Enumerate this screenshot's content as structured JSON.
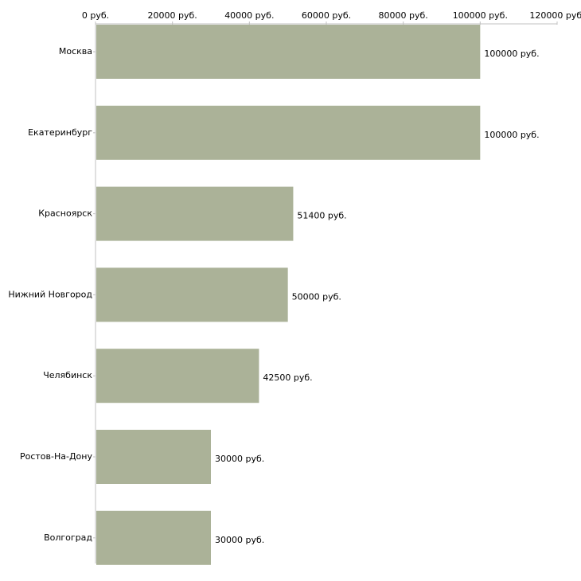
{
  "chart_data": {
    "type": "bar",
    "orientation": "horizontal",
    "title": "",
    "xlabel": "",
    "ylabel": "",
    "categories": [
      "Москва",
      "Екатеринбург",
      "Красноярск",
      "Нижний Новгород",
      "Челябинск",
      "Ростов-На-Дону",
      "Волгоград"
    ],
    "values": [
      100000,
      100000,
      51400,
      50000,
      42500,
      30000,
      30000
    ],
    "value_labels": [
      "100000 руб.",
      "100000 руб.",
      "51400 руб.",
      "50000 руб.",
      "42500 руб.",
      "30000 руб.",
      "30000 руб."
    ],
    "ticks": [
      0,
      20000,
      40000,
      60000,
      80000,
      100000,
      120000
    ],
    "tick_labels": [
      "0 руб.",
      "20000 руб.",
      "40000 руб.",
      "60000 руб.",
      "80000 руб.",
      "100000 руб.",
      "120000 руб."
    ],
    "xlim": [
      0,
      120000
    ],
    "axis_position": "top",
    "grid": false,
    "legend": "none",
    "bar_color": "#abb298",
    "axis_color": "#c0c0c0"
  }
}
